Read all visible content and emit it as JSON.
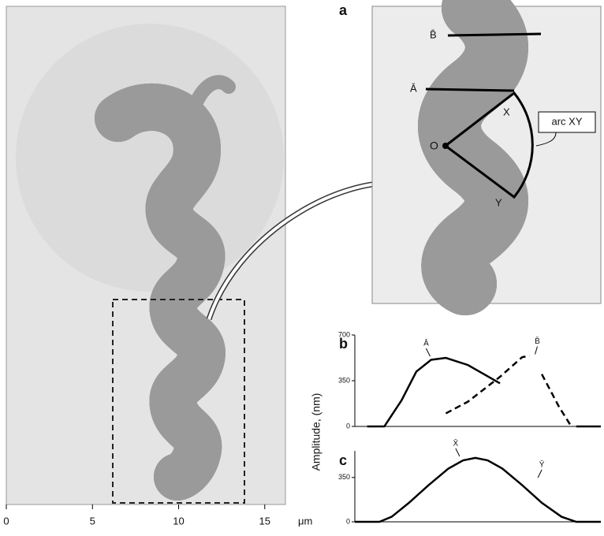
{
  "image_panel": {
    "xlim": [
      0,
      16.2
    ],
    "xticks": [
      0,
      5,
      10,
      15
    ],
    "unit": "μm"
  },
  "panel_a": {
    "label": "a",
    "B": "B̄",
    "A": "Ā",
    "X": "X",
    "O": "O",
    "Y": "Y",
    "callout": "arc XY"
  },
  "ylabel": "Amplitude, (nm)",
  "chart_data": [
    {
      "type": "line",
      "label": "b",
      "xlim": [
        0,
        100
      ],
      "ylim": [
        0,
        700
      ],
      "yticks": [
        0,
        350,
        700
      ],
      "x": [
        5,
        12,
        19,
        25,
        31,
        37,
        46,
        59,
        68,
        71,
        73,
        76,
        83,
        88,
        90,
        100
      ],
      "series": [
        {
          "name": "Ā",
          "color": "#000",
          "dash": false,
          "values": [
            0,
            0,
            200,
            420,
            510,
            525,
            470,
            330,
            null,
            null,
            170,
            null,
            60,
            null,
            0,
            0
          ]
        },
        {
          "name": "B̄",
          "color": "#000",
          "dash": true,
          "values": [
            null,
            0,
            null,
            40,
            null,
            100,
            190,
            380,
            530,
            540,
            null,
            400,
            150,
            0,
            null,
            0
          ]
        }
      ]
    },
    {
      "type": "line",
      "label": "c",
      "xlim": [
        0,
        100
      ],
      "ylim": [
        0,
        560
      ],
      "yticks": [
        0,
        350
      ],
      "x": [
        0,
        10,
        15,
        22,
        30,
        38,
        44,
        49,
        54,
        60,
        68,
        76,
        84,
        90,
        100
      ],
      "series": [
        {
          "name": "X̄",
          "color": "#000",
          "dash": false,
          "values": [
            0,
            0,
            40,
            150,
            290,
            420,
            485,
            505,
            485,
            420,
            290,
            150,
            40,
            0,
            0
          ]
        }
      ],
      "extra_label": "Ȳ"
    }
  ]
}
